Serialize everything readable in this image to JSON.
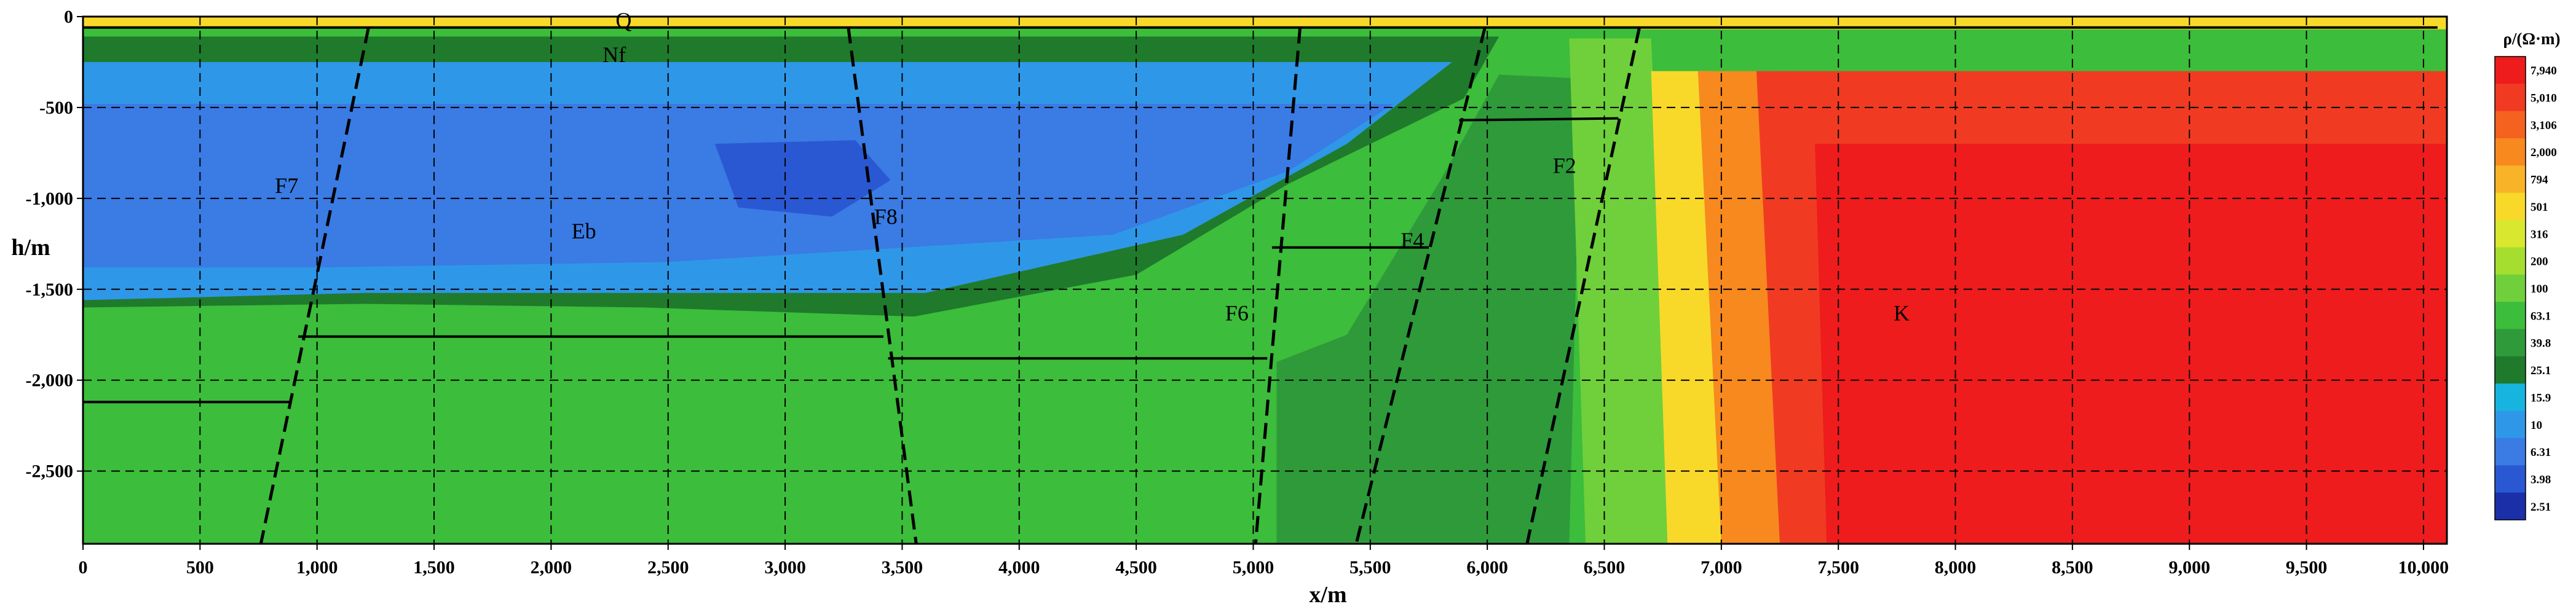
{
  "chart_data": {
    "type": "heatmap",
    "title": "",
    "xlabel": "x/m",
    "ylabel": "h/m",
    "xlim": [
      0,
      10100
    ],
    "ylim": [
      -2900,
      0
    ],
    "x_ticks": [
      0,
      500,
      1000,
      1500,
      2000,
      2500,
      3000,
      3500,
      4000,
      4500,
      5000,
      5500,
      6000,
      6500,
      7000,
      7500,
      8000,
      8500,
      9000,
      9500,
      10000
    ],
    "x_tick_labels": [
      "0",
      "500",
      "1,000",
      "1,500",
      "2,000",
      "2,500",
      "3,000",
      "3,500",
      "4,000",
      "4,500",
      "5,000",
      "5,500",
      "6,000",
      "6,500",
      "7,000",
      "7,500",
      "8,000",
      "8,500",
      "9,000",
      "9,500",
      "10,000"
    ],
    "y_ticks": [
      0,
      -500,
      -1000,
      -1500,
      -2000,
      -2500
    ],
    "y_tick_labels": [
      "0",
      "-500",
      "-1,000",
      "-1,500",
      "-2,000",
      "-2,500"
    ],
    "grid": true,
    "colorbar": {
      "title": "ρ/(Ω·m)",
      "position": "right",
      "labels": [
        "7,940",
        "5,010",
        "3,106",
        "2,000",
        "794",
        "501",
        "316",
        "200",
        "100",
        "63.1",
        "39.8",
        "25.1",
        "15.9",
        "10",
        "6.31",
        "3.98",
        "2.51"
      ],
      "colors": [
        "#ee1c1c",
        "#f03b22",
        "#f5611f",
        "#f7891f",
        "#f9b328",
        "#f8d92a",
        "#d9e82f",
        "#a6de2f",
        "#6fd03b",
        "#3cbd3b",
        "#2e9a3a",
        "#1f7a2c",
        "#18b4e0",
        "#2f97e8",
        "#3a7be4",
        "#2a58d2",
        "#1a2fa8"
      ]
    },
    "annotations": [
      {
        "text": "Q",
        "x": 2310,
        "y": -20
      },
      {
        "text": "Nf",
        "x": 2270,
        "y": -210
      },
      {
        "text": "F7",
        "x": 870,
        "y": -930
      },
      {
        "text": "Eb",
        "x": 2140,
        "y": -1180
      },
      {
        "text": "F8",
        "x": 3430,
        "y": -1100
      },
      {
        "text": "F6",
        "x": 4930,
        "y": -1630
      },
      {
        "text": "F4",
        "x": 5680,
        "y": -1230
      },
      {
        "text": "F2",
        "x": 6330,
        "y": -820
      },
      {
        "text": "K",
        "x": 7770,
        "y": -1630
      }
    ],
    "faults": [
      {
        "name": "F7",
        "points": [
          [
            1220,
            -60
          ],
          [
            760,
            -2900
          ]
        ]
      },
      {
        "name": "F8",
        "points": [
          [
            3270,
            -60
          ],
          [
            3560,
            -2900
          ]
        ]
      },
      {
        "name": "F6",
        "points": [
          [
            5200,
            -60
          ],
          [
            5010,
            -2900
          ]
        ]
      },
      {
        "name": "F4",
        "points": [
          [
            5990,
            -60
          ],
          [
            5440,
            -2900
          ]
        ]
      },
      {
        "name": "F2",
        "points": [
          [
            6650,
            -60
          ],
          [
            6170,
            -2900
          ]
        ]
      }
    ],
    "horizons": [
      {
        "points": [
          [
            0,
            -60
          ],
          [
            10060,
            -60
          ]
        ]
      },
      {
        "points": [
          [
            0,
            -2120
          ],
          [
            880,
            -2120
          ]
        ]
      },
      {
        "points": [
          [
            920,
            -1760
          ],
          [
            3420,
            -1760
          ]
        ]
      },
      {
        "points": [
          [
            3440,
            -1880
          ],
          [
            5060,
            -1880
          ]
        ]
      },
      {
        "points": [
          [
            5080,
            -1270
          ],
          [
            5750,
            -1270
          ]
        ]
      },
      {
        "points": [
          [
            5880,
            -570
          ],
          [
            6560,
            -560
          ]
        ]
      }
    ],
    "zones": [
      {
        "name": "top-weathered",
        "class": 5,
        "points": [
          [
            0,
            0
          ],
          [
            10100,
            0
          ],
          [
            10100,
            -70
          ],
          [
            0,
            -70
          ]
        ]
      },
      {
        "name": "basin-green",
        "class": 9,
        "points": [
          [
            0,
            -60
          ],
          [
            6650,
            -60
          ],
          [
            6500,
            -2900
          ],
          [
            0,
            -2900
          ]
        ]
      },
      {
        "name": "basin-cyan",
        "class": 11,
        "points": [
          [
            0,
            -110
          ],
          [
            6050,
            -110
          ],
          [
            5900,
            -450
          ],
          [
            5150,
            -920
          ],
          [
            4500,
            -1420
          ],
          [
            3550,
            -1650
          ],
          [
            2400,
            -1600
          ],
          [
            1200,
            -1580
          ],
          [
            0,
            -1600
          ]
        ]
      },
      {
        "name": "basin-lightblue",
        "class": 13,
        "points": [
          [
            0,
            -250
          ],
          [
            5850,
            -250
          ],
          [
            5400,
            -700
          ],
          [
            4700,
            -1200
          ],
          [
            3600,
            -1520
          ],
          [
            1200,
            -1520
          ],
          [
            0,
            -1560
          ]
        ]
      },
      {
        "name": "basin-blue",
        "class": 14,
        "points": [
          [
            0,
            -480
          ],
          [
            5600,
            -480
          ],
          [
            5150,
            -850
          ],
          [
            4400,
            -1200
          ],
          [
            2500,
            -1350
          ],
          [
            1000,
            -1380
          ],
          [
            0,
            -1380
          ]
        ]
      },
      {
        "name": "deep-blue",
        "class": 15,
        "points": [
          [
            2700,
            -700
          ],
          [
            3300,
            -680
          ],
          [
            3450,
            -900
          ],
          [
            3200,
            -1100
          ],
          [
            2800,
            -1050
          ]
        ]
      },
      {
        "name": "fault-block-dark",
        "class": 10,
        "points": [
          [
            5100,
            -1900
          ],
          [
            5400,
            -1750
          ],
          [
            5800,
            -900
          ],
          [
            6050,
            -320
          ],
          [
            6400,
            -340
          ],
          [
            6350,
            -2900
          ],
          [
            5100,
            -2900
          ]
        ]
      },
      {
        "name": "transition-lime",
        "class": 8,
        "points": [
          [
            6350,
            -120
          ],
          [
            6700,
            -120
          ],
          [
            6800,
            -2900
          ],
          [
            6420,
            -2900
          ]
        ]
      },
      {
        "name": "transition-yellow",
        "class": 5,
        "points": [
          [
            6700,
            -300
          ],
          [
            6950,
            -300
          ],
          [
            7050,
            -2900
          ],
          [
            6770,
            -2900
          ]
        ]
      },
      {
        "name": "transition-orange",
        "class": 3,
        "points": [
          [
            6900,
            -300
          ],
          [
            7250,
            -300
          ],
          [
            7350,
            -2900
          ],
          [
            7000,
            -2900
          ]
        ]
      },
      {
        "name": "east-red",
        "class": 1,
        "points": [
          [
            7150,
            -300
          ],
          [
            10100,
            -300
          ],
          [
            10100,
            -2900
          ],
          [
            7250,
            -2900
          ]
        ]
      },
      {
        "name": "east-core",
        "class": 0,
        "points": [
          [
            7400,
            -700
          ],
          [
            10100,
            -700
          ],
          [
            10100,
            -2900
          ],
          [
            7450,
            -2900
          ]
        ]
      }
    ]
  }
}
